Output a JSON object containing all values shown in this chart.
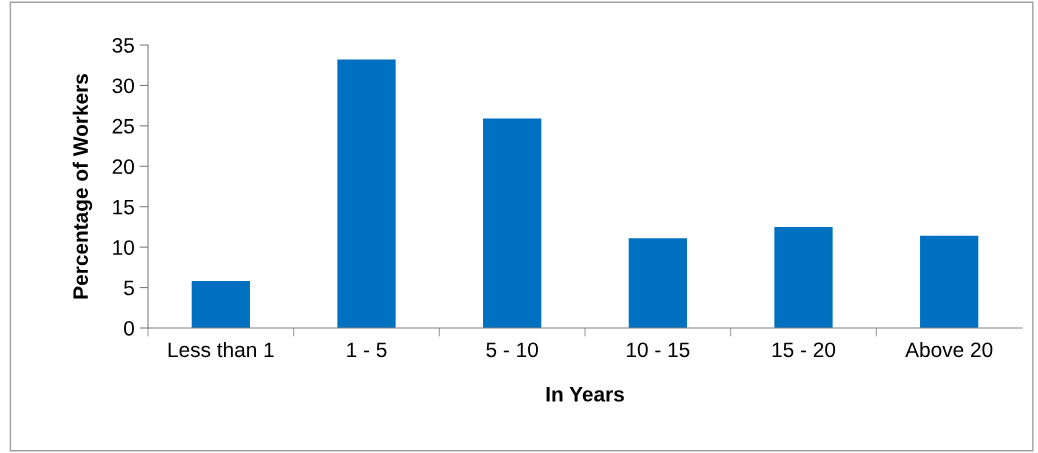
{
  "chart_data": {
    "type": "bar",
    "xlabel": "In Years",
    "ylabel": "Percentage of Workers",
    "categories": [
      "Less than 1",
      "1 - 5",
      "5 - 10",
      "10 - 15",
      "15 - 20",
      "Above 20"
    ],
    "values": [
      5.8,
      33.2,
      25.9,
      11.1,
      12.5,
      11.4
    ],
    "color": "#0070c0",
    "ylim": [
      0,
      35
    ],
    "yticks": [
      0,
      5,
      10,
      15,
      20,
      25,
      30,
      35
    ],
    "grid": false,
    "legend": false
  }
}
